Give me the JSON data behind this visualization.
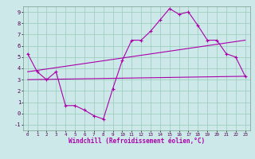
{
  "title": "",
  "xlabel": "Windchill (Refroidissement éolien,°C)",
  "bg_color": "#cce8e8",
  "grid_color": "#99ccbb",
  "line_color": "#aa00aa",
  "xlim": [
    -0.5,
    23.5
  ],
  "ylim": [
    -1.5,
    9.5
  ],
  "xticks": [
    0,
    1,
    2,
    3,
    4,
    5,
    6,
    7,
    8,
    9,
    10,
    11,
    12,
    13,
    14,
    15,
    16,
    17,
    18,
    19,
    20,
    21,
    22,
    23
  ],
  "yticks": [
    -1,
    0,
    1,
    2,
    3,
    4,
    5,
    6,
    7,
    8,
    9
  ],
  "curve1_x": [
    0,
    1,
    2,
    3,
    4,
    5,
    6,
    7,
    8,
    9,
    10,
    11,
    12,
    13,
    14,
    15,
    16,
    17,
    18,
    19,
    20,
    21,
    22,
    23
  ],
  "curve1_y": [
    5.3,
    3.7,
    3.0,
    3.7,
    0.7,
    0.7,
    0.3,
    -0.2,
    -0.5,
    2.2,
    4.7,
    6.5,
    6.5,
    7.3,
    8.3,
    9.3,
    8.8,
    9.0,
    7.8,
    6.5,
    6.5,
    5.3,
    5.0,
    3.3
  ],
  "curve2_x": [
    0,
    23
  ],
  "curve2_y": [
    3.0,
    3.3
  ],
  "curve3_x": [
    0,
    23
  ],
  "curve3_y": [
    3.7,
    6.5
  ]
}
